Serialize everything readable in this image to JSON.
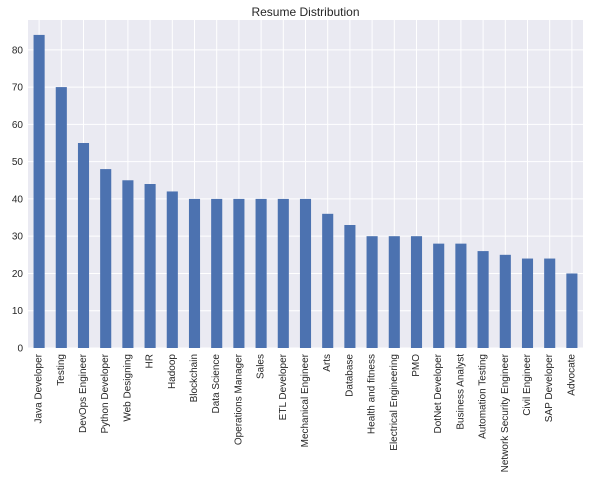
{
  "chart_data": {
    "type": "bar",
    "title": "Resume Distribution",
    "xlabel": "",
    "ylabel": "",
    "ylim": [
      0,
      88
    ],
    "yticks": [
      0,
      10,
      20,
      30,
      40,
      50,
      60,
      70,
      80
    ],
    "grid": true,
    "legend": "none",
    "colors": {
      "bar": "#4c72b0",
      "background": "#eaeaf2",
      "grid": "#ffffff"
    },
    "categories": [
      "Java Developer",
      "Testing",
      "DevOps Engineer",
      "Python Developer",
      "Web Designing",
      "HR",
      "Hadoop",
      "Blockchain",
      "Data Science",
      "Operations Manager",
      "Sales",
      "ETL Developer",
      "Mechanical Engineer",
      "Arts",
      "Database",
      "Health and fitness",
      "Electrical Engineering",
      "PMO",
      "DotNet Developer",
      "Business Analyst",
      "Automation Testing",
      "Network Security Engineer",
      "Civil Engineer",
      "SAP Developer",
      "Advocate"
    ],
    "values": [
      84,
      70,
      55,
      48,
      45,
      44,
      42,
      40,
      40,
      40,
      40,
      40,
      40,
      36,
      33,
      30,
      30,
      30,
      28,
      28,
      26,
      25,
      24,
      24,
      20
    ]
  }
}
